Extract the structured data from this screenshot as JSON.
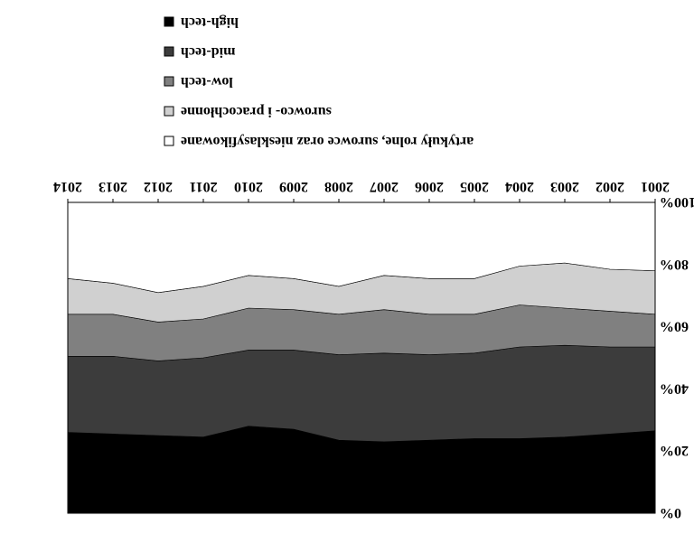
{
  "chart_data": {
    "type": "area",
    "stacked": true,
    "rendering": "image is upside-down (rotated 180 degrees)",
    "x": [
      "2001",
      "2002",
      "2003",
      "2004",
      "2005",
      "2006",
      "2007",
      "2008",
      "2009",
      "2010",
      "2011",
      "2012",
      "2013",
      "2014"
    ],
    "y_ticks": [
      "0%",
      "20%",
      "40%",
      "60%",
      "80%",
      "100%"
    ],
    "ylim": [
      0,
      100
    ],
    "grid": false,
    "legend_position": "top",
    "series": [
      {
        "name": "high-tech",
        "color": "#000000",
        "values": [
          26.5,
          25.5,
          24.5,
          24.0,
          24.0,
          23.5,
          23.0,
          23.5,
          27.0,
          28.0,
          24.5,
          25.0,
          25.5,
          26.0
        ]
      },
      {
        "name": "mid-tech",
        "color": "#3c3c3c",
        "values": [
          27.0,
          28.0,
          29.5,
          29.5,
          27.5,
          27.5,
          28.5,
          27.5,
          25.5,
          24.5,
          25.5,
          24.0,
          25.0,
          24.5
        ]
      },
      {
        "name": "low-tech",
        "color": "#808080",
        "values": [
          10.5,
          11.5,
          12.0,
          13.5,
          12.5,
          13.0,
          14.0,
          13.0,
          13.0,
          13.5,
          12.5,
          12.5,
          13.5,
          13.5
        ]
      },
      {
        "name": "surowco- i pracochłonne",
        "color": "#d0d0d0",
        "values": [
          14.0,
          13.5,
          14.5,
          12.5,
          11.5,
          11.5,
          11.0,
          9.0,
          10.0,
          10.5,
          10.5,
          9.5,
          10.0,
          11.5
        ]
      },
      {
        "name": "artykuły rolne, surowce oraz niesklasyfikowane",
        "color": "#ffffff",
        "values": [
          22.0,
          21.5,
          19.5,
          20.5,
          24.5,
          24.5,
          23.5,
          27.0,
          24.5,
          23.5,
          27.0,
          29.0,
          26.0,
          24.5
        ]
      }
    ]
  }
}
